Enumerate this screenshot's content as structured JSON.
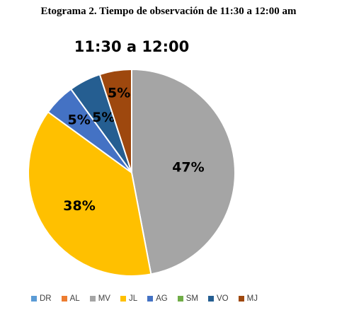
{
  "caption": "Etograma 2. Tiempo de observación de 11:30 a 12:00 am",
  "chart_data": {
    "type": "pie",
    "title": "11:30 a 12:00",
    "categories": [
      "DR",
      "AL",
      "MV",
      "JL",
      "AG",
      "SM",
      "VO",
      "MJ"
    ],
    "values": [
      0,
      0,
      47,
      38,
      5,
      0,
      5,
      5
    ],
    "value_labels": [
      "",
      "",
      "47%",
      "38%",
      "5%",
      "",
      "5%",
      "5%"
    ],
    "colors": [
      "#5b9bd5",
      "#ed7d31",
      "#a5a5a5",
      "#ffc000",
      "#4472c4",
      "#70ad47",
      "#255e91",
      "#9e480e"
    ],
    "legend_position": "bottom"
  }
}
